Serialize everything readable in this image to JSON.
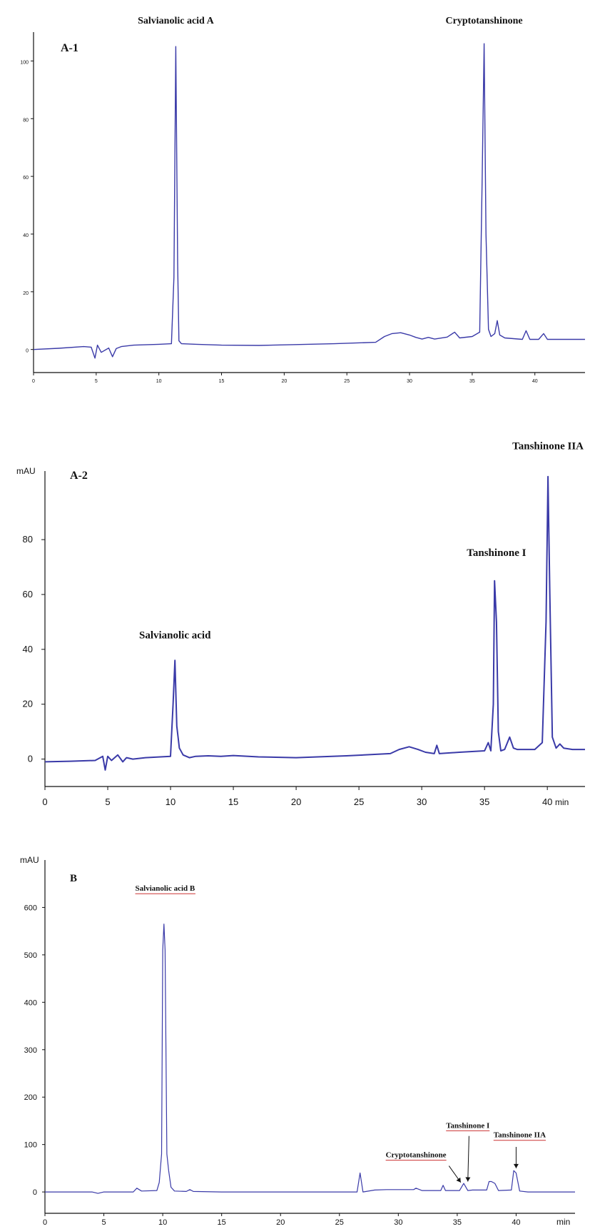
{
  "colors": {
    "trace": "#3a3aa8",
    "axis": "#111111",
    "underline": "#cc3333"
  },
  "chart_data": [
    {
      "id": "A-1",
      "type": "line",
      "panel_label": "A-1",
      "ylabel": "",
      "xlabel": "",
      "xlim": [
        0,
        44
      ],
      "ylim": [
        -8,
        110
      ],
      "x_ticks": [
        "0",
        "5",
        "10",
        "15",
        "20",
        "25",
        "30",
        "35",
        "40"
      ],
      "y_ticks": [
        "0",
        "20",
        "40",
        "60",
        "80",
        "100"
      ],
      "series": [
        {
          "x": [
            0,
            2,
            4,
            4.6,
            4.9,
            5.1,
            5.4,
            6,
            6.3,
            6.6,
            7,
            8,
            10,
            11,
            11.2,
            11.35,
            11.5,
            11.6,
            11.8,
            13,
            15,
            18,
            20,
            24,
            27.3,
            28,
            28.6,
            29.3,
            30,
            30.5,
            31,
            31.5,
            32,
            33,
            33.6,
            34,
            35,
            35.6,
            35.8,
            35.95,
            36.1,
            36.3,
            36.5,
            36.8,
            37,
            37.2,
            37.6,
            39,
            39.3,
            39.6,
            40.3,
            40.7,
            41,
            42,
            44
          ],
          "y": [
            0,
            0.4,
            1,
            0.8,
            -3,
            1.5,
            -1,
            0.5,
            -2.5,
            0.3,
            1,
            1.5,
            1.8,
            2,
            25,
            105,
            30,
            3,
            2,
            1.8,
            1.5,
            1.4,
            1.6,
            2,
            2.5,
            4.5,
            5.5,
            5.8,
            5,
            4.2,
            3.6,
            4.2,
            3.6,
            4.3,
            6,
            4,
            4.5,
            6,
            60,
            106,
            40,
            7,
            4.5,
            5.5,
            10,
            5,
            4,
            3.5,
            6.5,
            3.5,
            3.5,
            5.5,
            3.5,
            3.5,
            3.5
          ]
        }
      ],
      "annotations": [
        {
          "text": "Salvianolic acid A",
          "x": 11.35,
          "y": 113
        },
        {
          "text": "Cryptotanshinone",
          "x": 35.95,
          "y": 113
        }
      ]
    },
    {
      "id": "A-2",
      "type": "line",
      "panel_label": "A-2",
      "ylabel": "mAU",
      "xlabel": "min",
      "xlim": [
        0,
        43
      ],
      "ylim": [
        -10,
        105
      ],
      "x_ticks": [
        "0",
        "5",
        "10",
        "15",
        "20",
        "25",
        "30",
        "35",
        "40"
      ],
      "y_ticks": [
        "0",
        "20",
        "40",
        "60",
        "80"
      ],
      "series": [
        {
          "x": [
            0,
            2,
            4,
            4.6,
            4.8,
            5,
            5.3,
            5.8,
            6.2,
            6.5,
            7,
            8,
            10,
            10.2,
            10.35,
            10.5,
            10.7,
            11,
            11.5,
            12,
            13,
            14,
            15,
            17,
            20,
            24,
            27.5,
            28.2,
            29,
            29.7,
            30.3,
            31,
            31.2,
            31.4,
            33,
            35,
            35.3,
            35.5,
            35.7,
            35.8,
            35.95,
            36.1,
            36.3,
            36.6,
            37,
            37.3,
            37.6,
            39,
            39.6,
            39.9,
            40.05,
            40.2,
            40.4,
            40.7,
            41,
            41.3,
            42,
            43
          ],
          "y": [
            -1,
            -0.8,
            -0.5,
            1,
            -4,
            1,
            -0.5,
            1.5,
            -1,
            0.5,
            0,
            0.5,
            1,
            20,
            36,
            12,
            4,
            1.5,
            0.5,
            1,
            1.2,
            1,
            1.3,
            0.8,
            0.5,
            1.2,
            2,
            3.5,
            4.5,
            3.5,
            2.5,
            2,
            5,
            2,
            2.5,
            3,
            6,
            3,
            20,
            65,
            50,
            10,
            3,
            3.5,
            8,
            4,
            3.5,
            3.5,
            6,
            50,
            103,
            60,
            8,
            4,
            5.5,
            4,
            3.5,
            3.5
          ]
        }
      ],
      "annotations": [
        {
          "text": "Salvianolic acid",
          "x": 10.35,
          "y": 44
        },
        {
          "text": "Tanshinone I",
          "x": 35.95,
          "y": 74
        },
        {
          "text": "Tanshinone IIA",
          "x": 40.05,
          "y": 113
        }
      ]
    },
    {
      "id": "B",
      "type": "line",
      "panel_label": "B",
      "ylabel": "mAU",
      "xlabel": "min",
      "xlim": [
        0,
        45
      ],
      "ylim": [
        -45,
        700
      ],
      "x_ticks": [
        "0",
        "5",
        "10",
        "15",
        "20",
        "25",
        "30",
        "35",
        "40"
      ],
      "y_ticks": [
        "0",
        "100",
        "200",
        "300",
        "400",
        "500",
        "600"
      ],
      "series": [
        {
          "x": [
            0,
            4,
            4.5,
            5,
            7.5,
            7.8,
            8.2,
            9.5,
            9.7,
            9.9,
            10,
            10.1,
            10.2,
            10.35,
            10.5,
            10.7,
            11,
            12,
            12.3,
            12.6,
            15,
            20,
            26.5,
            26.75,
            27,
            28,
            29,
            31.3,
            31.5,
            32,
            33.6,
            33.8,
            34,
            35.2,
            35.55,
            35.9,
            36.3,
            37.5,
            37.7,
            37.9,
            38.2,
            38.5,
            39.6,
            39.8,
            40,
            40.3,
            41,
            45
          ],
          "y": [
            0,
            0,
            -3,
            0,
            0,
            8,
            2,
            3,
            20,
            80,
            510,
            565,
            510,
            80,
            45,
            10,
            2,
            1,
            5,
            1,
            0,
            0,
            0,
            40,
            0,
            4,
            5,
            5,
            8,
            3,
            3,
            14,
            3,
            3,
            18,
            3,
            4,
            4,
            22,
            22,
            18,
            3,
            4,
            45,
            40,
            2,
            0,
            0
          ]
        }
      ],
      "annotations": [
        {
          "text": "Salvianolic acid B",
          "x": 10.2,
          "y": 635
        },
        {
          "text": "Cryptotanshinone",
          "x": 31.5,
          "y": 73
        },
        {
          "text": "Tanshinone I",
          "x": 35.9,
          "y": 135
        },
        {
          "text": "Tanshinone IIA",
          "x": 40.3,
          "y": 115
        }
      ]
    }
  ]
}
